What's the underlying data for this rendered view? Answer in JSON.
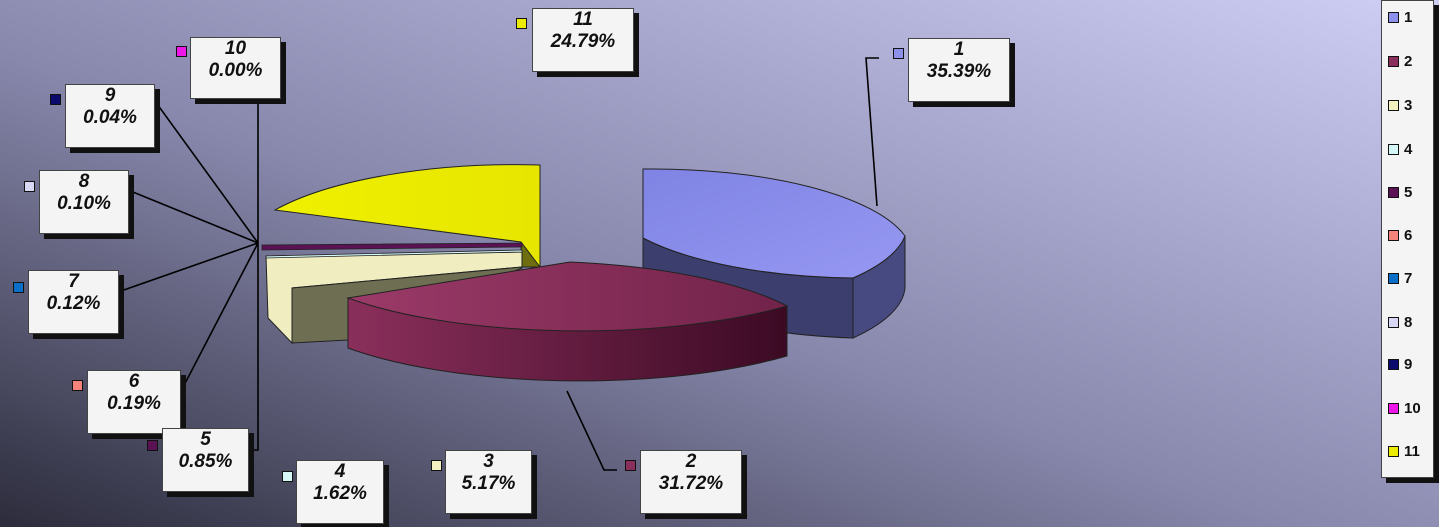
{
  "chart_data": {
    "type": "pie",
    "slices": [
      {
        "label": "1",
        "value": 35.39,
        "pct": "35.39%",
        "color": "#8e91ec"
      },
      {
        "label": "2",
        "value": 31.72,
        "pct": "31.72%",
        "color": "#8a2f5b"
      },
      {
        "label": "3",
        "value": 5.17,
        "pct": "5.17%",
        "color": "#f3f1c2"
      },
      {
        "label": "4",
        "value": 1.62,
        "pct": "1.62%",
        "color": "#d6f7f8"
      },
      {
        "label": "5",
        "value": 0.85,
        "pct": "0.85%",
        "color": "#5a1254"
      },
      {
        "label": "6",
        "value": 0.19,
        "pct": "0.19%",
        "color": "#f3837b"
      },
      {
        "label": "7",
        "value": 0.12,
        "pct": "0.12%",
        "color": "#0a6fc7"
      },
      {
        "label": "8",
        "value": 0.1,
        "pct": "0.10%",
        "color": "#d8d8f4"
      },
      {
        "label": "9",
        "value": 0.04,
        "pct": "0.04%",
        "color": "#0b0b6e"
      },
      {
        "label": "10",
        "value": 0.0,
        "pct": "0.00%",
        "color": "#ee17ea"
      },
      {
        "label": "11",
        "value": 24.79,
        "pct": "24.79%",
        "color": "#ecec04"
      }
    ],
    "legend_position": "right",
    "style": "exploded 3d pie"
  }
}
